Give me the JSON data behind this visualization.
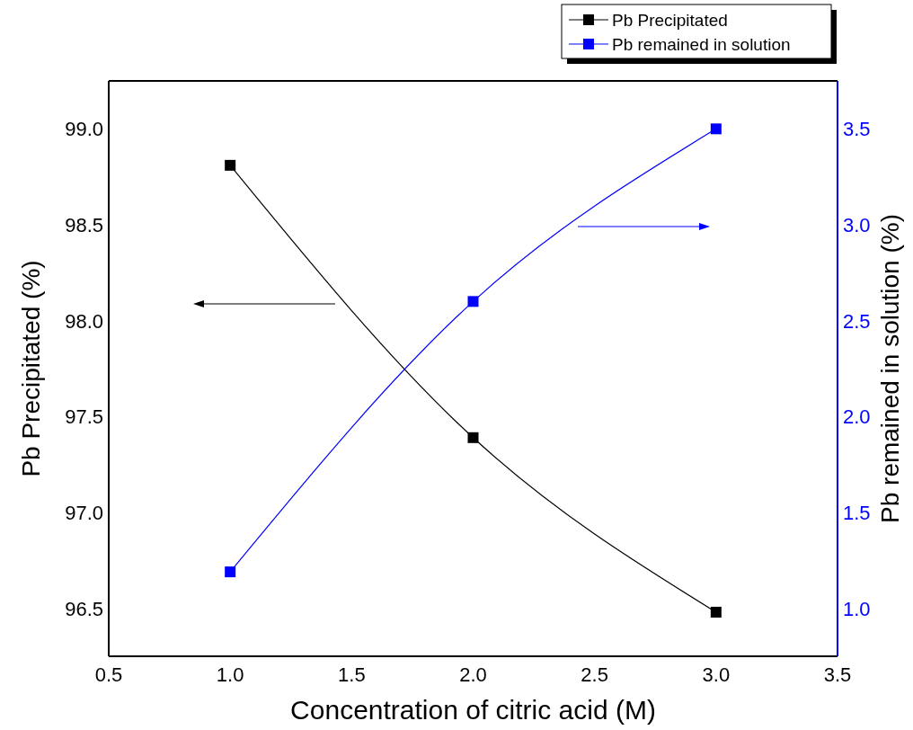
{
  "chart_data": {
    "type": "line",
    "xlabel": "Concentration of citric acid (M)",
    "ylabel": "Pb Precipitated (%)",
    "y2label": "Pb remained in solution (%)",
    "x": [
      1,
      2,
      3
    ],
    "series": [
      {
        "name": "Pb Precipitated",
        "color": "#000000",
        "values": [
          98.81,
          97.39,
          96.48
        ]
      },
      {
        "name": "Pb remained in solution",
        "color": "#0000ff",
        "values": [
          1.19,
          2.6,
          3.5
        ],
        "axis": "y2"
      }
    ],
    "xlim": [
      0.5,
      3.5
    ],
    "xticks": [
      {
        "value": 0.5,
        "label": "0.5"
      },
      {
        "value": 1,
        "label": "1.0"
      },
      {
        "value": 1.5,
        "label": "1.5"
      },
      {
        "value": 2,
        "label": "2.0"
      },
      {
        "value": 2.5,
        "label": "2.5"
      },
      {
        "value": 3,
        "label": "3.0"
      },
      {
        "value": 3.5,
        "label": "3.5"
      }
    ],
    "ylim": [
      96.25,
      99.25
    ],
    "yticks": [
      {
        "value": 96.5,
        "label": "96.5"
      },
      {
        "value": 97,
        "label": "97.0"
      },
      {
        "value": 97.5,
        "label": "97.5"
      },
      {
        "value": 98,
        "label": "98.0"
      },
      {
        "value": 98.5,
        "label": "98.5"
      },
      {
        "value": 99,
        "label": "99.0"
      }
    ],
    "y2lim": [
      0.75,
      3.75
    ],
    "y2ticks": [
      {
        "value": 1,
        "label": "1.0"
      },
      {
        "value": 1.5,
        "label": "1.5"
      },
      {
        "value": 2,
        "label": "2.0"
      },
      {
        "value": 2.5,
        "label": "2.5"
      },
      {
        "value": 3,
        "label": "3.0"
      },
      {
        "value": 3.5,
        "label": "3.5"
      }
    ],
    "marker": "square",
    "legend": "top right",
    "grid": false
  }
}
